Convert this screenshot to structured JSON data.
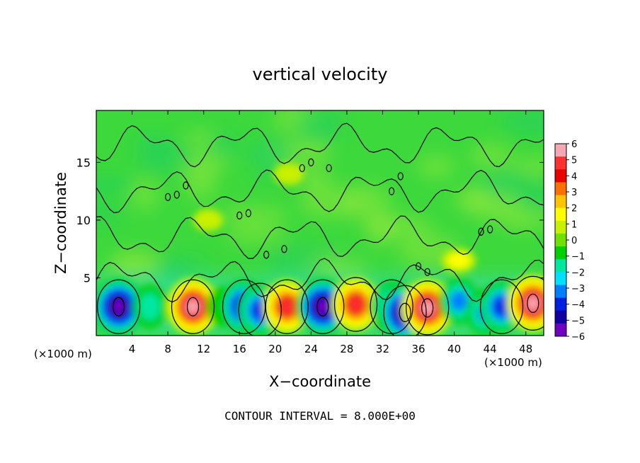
{
  "chart_data": {
    "type": "heatmap",
    "title": "vertical velocity",
    "xlabel": "X−coordinate",
    "ylabel": "Z−coordinate",
    "x_unit_left": "(×1000 m)",
    "x_unit_right": "(×1000 m)",
    "xlim": [
      0,
      50
    ],
    "ylim": [
      0,
      19.5
    ],
    "x_ticks": [
      4,
      8,
      12,
      16,
      20,
      24,
      28,
      32,
      36,
      40,
      44,
      48
    ],
    "y_ticks": [
      5,
      10,
      15
    ],
    "colorbar": {
      "range": [
        -6,
        6
      ],
      "tick_labels": [
        "6",
        "5",
        "4",
        "3",
        "2",
        "1",
        "0",
        "−1",
        "−2",
        "−3",
        "−4",
        "−5",
        "−6"
      ],
      "colors": [
        "#f5a8b4",
        "#ff3030",
        "#e80000",
        "#ff7000",
        "#ffc400",
        "#ffff00",
        "#c8f000",
        "#70e000",
        "#00d000",
        "#00e8a0",
        "#00e0ff",
        "#0080ff",
        "#0020e0",
        "#1000a0",
        "#7000c0"
      ]
    },
    "contour_interval_label": "CONTOUR INTERVAL = 8.000E+00",
    "cells": [
      {
        "x": 2.5,
        "z": 2.5,
        "w": -6
      },
      {
        "x": 6.0,
        "z": 2.5,
        "w": -2
      },
      {
        "x": 10.8,
        "z": 2.5,
        "w": 6
      },
      {
        "x": 14.0,
        "z": 2.5,
        "w": -1
      },
      {
        "x": 16.5,
        "z": 2.5,
        "w": -5
      },
      {
        "x": 18.3,
        "z": 2.2,
        "w": -4
      },
      {
        "x": 21.3,
        "z": 2.5,
        "w": 5
      },
      {
        "x": 25.3,
        "z": 2.5,
        "w": -6
      },
      {
        "x": 29.0,
        "z": 2.7,
        "w": 5
      },
      {
        "x": 33.0,
        "z": 2.5,
        "w": -4
      },
      {
        "x": 34.5,
        "z": 2.0,
        "w": -6
      },
      {
        "x": 37.0,
        "z": 2.4,
        "w": 6
      },
      {
        "x": 40.5,
        "z": 3.0,
        "w": -3
      },
      {
        "x": 43.5,
        "z": 2.0,
        "w": -3
      },
      {
        "x": 45.3,
        "z": 2.5,
        "w": -4
      },
      {
        "x": 48.8,
        "z": 2.8,
        "w": 6
      },
      {
        "x": 40.5,
        "z": 6.5,
        "w": 2
      },
      {
        "x": 21.5,
        "z": 14.0,
        "w": 1
      },
      {
        "x": 12.5,
        "z": 10.0,
        "w": 1
      }
    ]
  }
}
